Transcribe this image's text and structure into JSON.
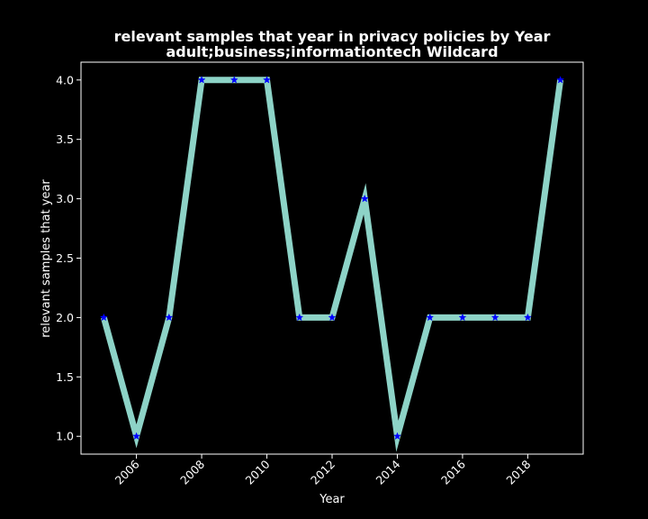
{
  "chart_data": {
    "type": "line",
    "title": "relevant samples that year in privacy policies by Year",
    "subtitle": "adult;business;informationtech Wildcard",
    "xlabel": "Year",
    "ylabel": "relevant samples that year",
    "x": [
      2005,
      2006,
      2007,
      2008,
      2009,
      2010,
      2011,
      2012,
      2013,
      2014,
      2015,
      2016,
      2017,
      2018,
      2019
    ],
    "series": [
      {
        "values": [
          2,
          1,
          2,
          4,
          4,
          4,
          2,
          2,
          3,
          1,
          2,
          2,
          2,
          2,
          4
        ]
      }
    ],
    "xticks": [
      "2006",
      "2008",
      "2010",
      "2012",
      "2014",
      "2016",
      "2018"
    ],
    "yticks": [
      "1.0",
      "1.5",
      "2.0",
      "2.5",
      "3.0",
      "3.5",
      "4.0"
    ],
    "xlim": [
      2004.3,
      2019.7
    ],
    "ylim": [
      0.85,
      4.15
    ],
    "grid": false,
    "line_color": "#8dd3c7",
    "marker_color": "#0000ff",
    "marker": "star",
    "background": "#000000",
    "foreground": "#ffffff"
  }
}
